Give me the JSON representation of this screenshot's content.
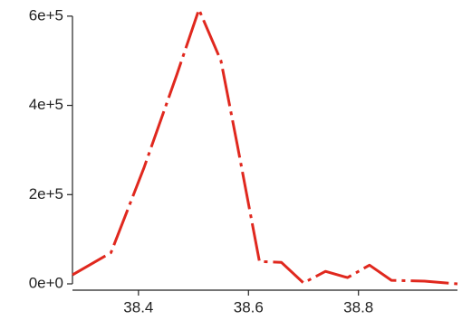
{
  "chart_data": {
    "type": "line",
    "title": "",
    "xlabel": "",
    "ylabel": "",
    "xlim": [
      38.28,
      38.98
    ],
    "ylim": [
      0,
      620000
    ],
    "grid": false,
    "legend": "none",
    "x_ticks": [
      38.4,
      38.6,
      38.8
    ],
    "x_tick_labels": [
      "38.4",
      "38.6",
      "38.8"
    ],
    "y_ticks": [
      0,
      200000,
      400000,
      600000
    ],
    "y_tick_labels": [
      "0e+0",
      "2e+5",
      "4e+5",
      "6e+5"
    ],
    "series": [
      {
        "color": "#e0281e",
        "line_style": "dash-dot",
        "x": [
          38.28,
          38.35,
          38.41,
          38.47,
          38.51,
          38.55,
          38.58,
          38.62,
          38.66,
          38.7,
          38.74,
          38.78,
          38.82,
          38.86,
          38.92,
          38.98
        ],
        "y": [
          20000,
          70000,
          260000,
          470000,
          615000,
          500000,
          310000,
          50000,
          48000,
          2000,
          28000,
          14000,
          42000,
          8000,
          6000,
          0
        ]
      }
    ]
  }
}
